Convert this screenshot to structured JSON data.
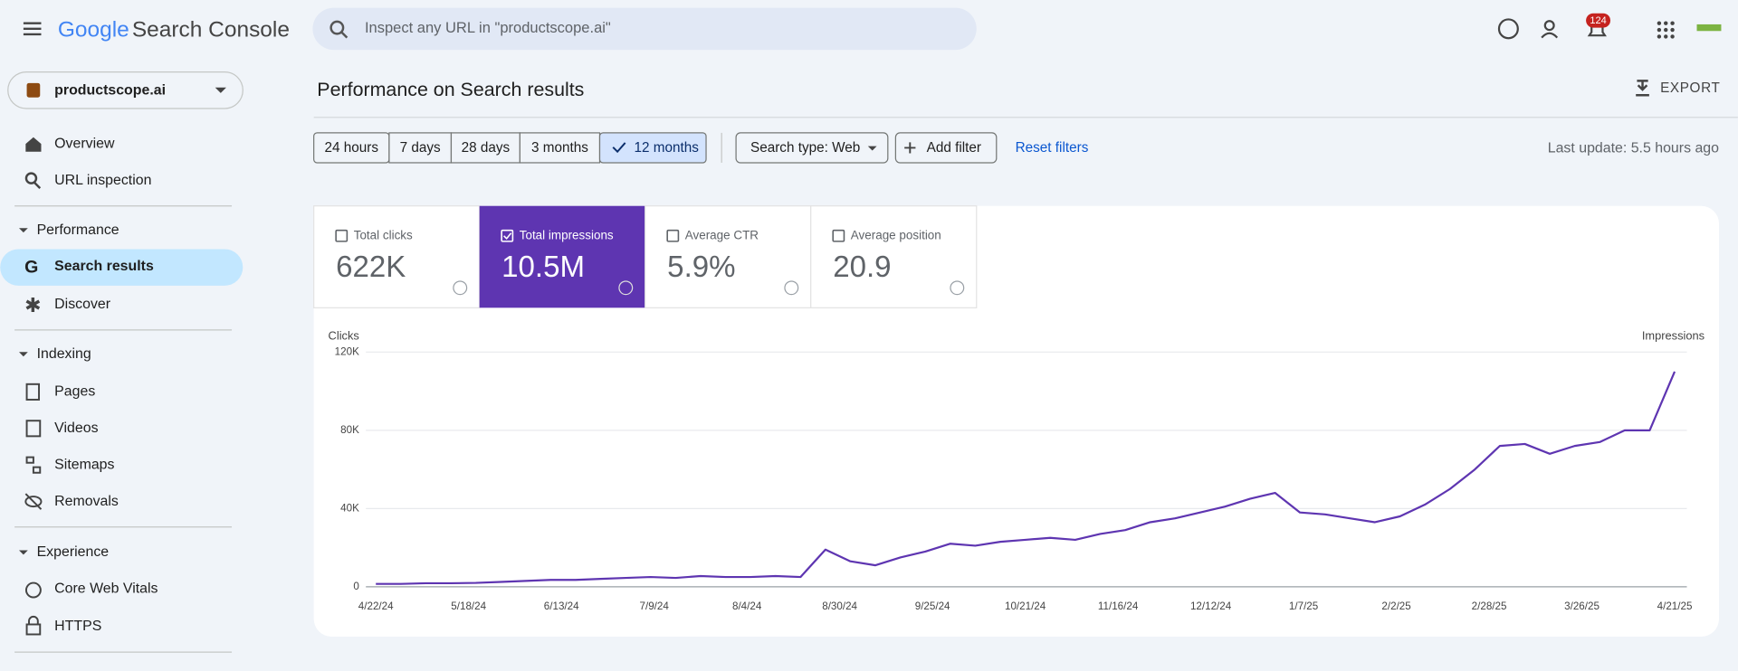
{
  "header": {
    "title_google": "Google",
    "title_product": "Search Console",
    "search_placeholder": "Inspect any URL in \"productscope.ai\"",
    "notifications": "124"
  },
  "sidebar": {
    "property": "productscope.ai",
    "items": [
      "Overview",
      "URL inspection"
    ],
    "sections": [
      {
        "title": "Performance",
        "items": [
          "Search results",
          "Discover"
        ]
      },
      {
        "title": "Indexing",
        "items": [
          "Pages",
          "Videos",
          "Sitemaps",
          "Removals"
        ]
      },
      {
        "title": "Experience",
        "items": [
          "Core Web Vitals",
          "HTTPS"
        ]
      }
    ]
  },
  "main": {
    "title": "Performance on Search results",
    "export": "EXPORT",
    "date_ranges": [
      "24 hours",
      "7 days",
      "28 days",
      "3 months",
      "12 months"
    ],
    "search_type": "Search type: Web",
    "add_filter": "Add filter",
    "reset_filters": "Reset filters",
    "last_update": "Last update: 5.5 hours ago",
    "metrics": [
      {
        "label": "Total clicks",
        "value": "622K"
      },
      {
        "label": "Total impressions",
        "value": "10.5M"
      },
      {
        "label": "Average CTR",
        "value": "5.9%"
      },
      {
        "label": "Average position",
        "value": "20.9"
      }
    ]
  },
  "chart_data": {
    "type": "line",
    "y_label": "Clicks",
    "y2_label": "Impressions",
    "color": "#5e35b1",
    "x": [
      "4/22/24",
      "4/29/24",
      "5/6/24",
      "5/13/24",
      "5/20/24",
      "5/27/24",
      "6/3/24",
      "6/10/24",
      "6/17/24",
      "6/24/24",
      "7/1/24",
      "7/8/24",
      "7/15/24",
      "7/22/24",
      "7/29/24",
      "8/5/24",
      "8/12/24",
      "8/19/24",
      "8/26/24",
      "9/2/24",
      "9/9/24",
      "9/16/24",
      "9/23/24",
      "9/30/24",
      "10/7/24",
      "10/14/24",
      "10/21/24",
      "10/28/24",
      "11/4/24",
      "11/11/24",
      "11/18/24",
      "11/25/24",
      "12/2/24",
      "12/9/24",
      "12/16/24",
      "12/23/24",
      "12/30/24",
      "1/6/25",
      "1/13/25",
      "1/20/25",
      "1/27/25",
      "2/3/25",
      "2/10/25",
      "2/17/25",
      "2/24/25",
      "3/3/25",
      "3/10/25",
      "3/17/25",
      "3/24/25",
      "3/31/25",
      "4/7/25",
      "4/14/25",
      "4/21/25"
    ],
    "values": [
      1500,
      1500,
      1800,
      1800,
      2000,
      2500,
      3000,
      3500,
      3500,
      4000,
      4500,
      5000,
      4500,
      5500,
      5000,
      5000,
      5500,
      5000,
      19000,
      13000,
      11000,
      15000,
      18000,
      22000,
      21000,
      23000,
      24000,
      25000,
      24000,
      27000,
      29000,
      33000,
      35000,
      38000,
      41000,
      45000,
      48000,
      38000,
      37000,
      35000,
      33000,
      36000,
      42000,
      50000,
      60000,
      72000,
      73000,
      68000,
      72000,
      74000,
      80000,
      80000,
      110000
    ],
    "ylim": [
      0,
      120000
    ],
    "yticks": [
      0,
      {
        "value": 40000,
        "label": "40K"
      },
      {
        "value": 80000,
        "label": "80K"
      },
      {
        "value": 120000,
        "label": "120K"
      }
    ],
    "xticks": [
      "4/22/24",
      "5/18/24",
      "6/13/24",
      "7/9/24",
      "8/4/24",
      "8/30/24",
      "9/25/24",
      "10/21/24",
      "11/16/24",
      "12/12/24",
      "1/7/25",
      "2/2/25",
      "2/28/25",
      "3/26/25",
      "4/21/25"
    ],
    "grid": true
  }
}
